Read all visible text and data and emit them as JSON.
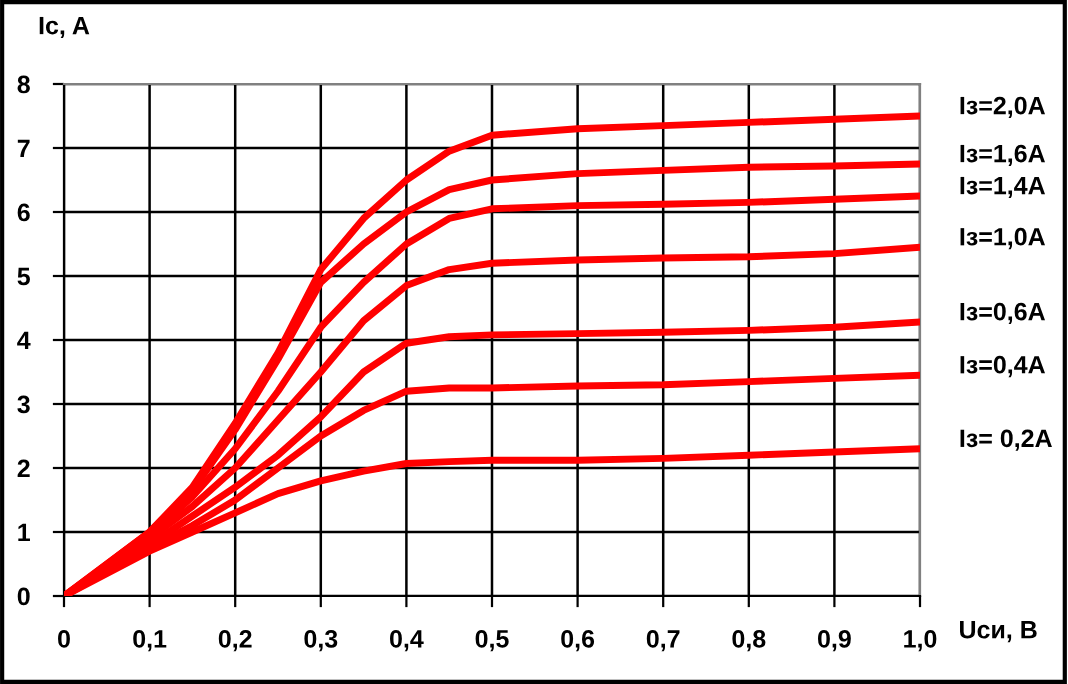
{
  "chart_data": {
    "type": "line",
    "xlabel": "Uси, В",
    "ylabel": "Ic, A",
    "x": [
      0,
      0.1,
      0.15,
      0.2,
      0.25,
      0.3,
      0.35,
      0.4,
      0.45,
      0.5,
      0.6,
      0.7,
      0.8,
      0.9,
      1.0
    ],
    "series": [
      {
        "name": "Iз=2,0A",
        "color": "#ff0000",
        "values": [
          0,
          1.0,
          1.7,
          2.7,
          3.8,
          5.1,
          5.9,
          6.5,
          6.95,
          7.2,
          7.3,
          7.35,
          7.4,
          7.45,
          7.5
        ]
      },
      {
        "name": "Iз=1,6A",
        "color": "#ff0000",
        "values": [
          0,
          1.0,
          1.65,
          2.6,
          3.7,
          4.9,
          5.5,
          6.0,
          6.35,
          6.5,
          6.6,
          6.65,
          6.7,
          6.72,
          6.75
        ]
      },
      {
        "name": "Iз=1,4A",
        "color": "#ff0000",
        "values": [
          0,
          0.95,
          1.55,
          2.3,
          3.2,
          4.2,
          4.9,
          5.5,
          5.9,
          6.05,
          6.1,
          6.12,
          6.15,
          6.2,
          6.25
        ]
      },
      {
        "name": "Iз=1,0A",
        "color": "#ff0000",
        "values": [
          0,
          0.9,
          1.4,
          2.0,
          2.75,
          3.5,
          4.3,
          4.85,
          5.1,
          5.2,
          5.25,
          5.28,
          5.3,
          5.35,
          5.45
        ]
      },
      {
        "name": "Iз=0,6A",
        "color": "#ff0000",
        "values": [
          0,
          0.8,
          1.25,
          1.7,
          2.2,
          2.8,
          3.5,
          3.95,
          4.05,
          4.08,
          4.1,
          4.12,
          4.15,
          4.2,
          4.28
        ]
      },
      {
        "name": "Iз=0,4A",
        "color": "#ff0000",
        "values": [
          0,
          0.75,
          1.1,
          1.5,
          2.0,
          2.5,
          2.9,
          3.2,
          3.25,
          3.25,
          3.28,
          3.3,
          3.35,
          3.4,
          3.45
        ]
      },
      {
        "name": "Iз= 0,2A",
        "color": "#ff0000",
        "values": [
          0,
          0.7,
          1.0,
          1.3,
          1.6,
          1.8,
          1.95,
          2.07,
          2.1,
          2.12,
          2.12,
          2.15,
          2.2,
          2.25,
          2.3
        ]
      }
    ],
    "xlim": [
      0,
      1.0
    ],
    "ylim": [
      0,
      8
    ],
    "xticks": [
      {
        "value": 0,
        "label": "0"
      },
      {
        "value": 0.1,
        "label": "0,1"
      },
      {
        "value": 0.2,
        "label": "0,2"
      },
      {
        "value": 0.3,
        "label": "0,3"
      },
      {
        "value": 0.4,
        "label": "0,4"
      },
      {
        "value": 0.5,
        "label": "0,5"
      },
      {
        "value": 0.6,
        "label": "0,6"
      },
      {
        "value": 0.7,
        "label": "0,7"
      },
      {
        "value": 0.8,
        "label": "0,8"
      },
      {
        "value": 0.9,
        "label": "0,9"
      },
      {
        "value": 1.0,
        "label": "1,0"
      }
    ],
    "yticks": [
      0,
      1,
      2,
      3,
      4,
      5,
      6,
      7,
      8
    ],
    "grid": true,
    "legend": false,
    "marker": "none",
    "line_style": "solid"
  }
}
